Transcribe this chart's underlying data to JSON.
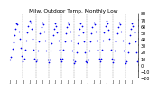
{
  "title": "Milw. Outdoor Temp. Monthly Low",
  "bg_color": "#ffffff",
  "dot_color": "#0000ee",
  "dot_size": 1.5,
  "grid_color": "#888888",
  "ylim": [
    -20,
    80
  ],
  "yticks": [
    -20,
    -10,
    0,
    10,
    20,
    30,
    40,
    50,
    60,
    70,
    80
  ],
  "ylabel_fontsize": 3.5,
  "xlabel_fontsize": 3.0,
  "title_fontsize": 4.2,
  "x_data": [
    0,
    1,
    2,
    3,
    4,
    5,
    6,
    7,
    8,
    9,
    10,
    11,
    12,
    13,
    14,
    15,
    16,
    17,
    18,
    19,
    20,
    21,
    22,
    23,
    24,
    25,
    26,
    27,
    28,
    29,
    30,
    31,
    32,
    33,
    34,
    35,
    36,
    37,
    38,
    39,
    40,
    41,
    42,
    43,
    44,
    45,
    46,
    47,
    48,
    49,
    50,
    51,
    52,
    53,
    54,
    55,
    56,
    57,
    58,
    59,
    60,
    61,
    62,
    63,
    64,
    65,
    66,
    67,
    68,
    69,
    70,
    71,
    72,
    73,
    74,
    75,
    76,
    77,
    78,
    79,
    80,
    81,
    82,
    83,
    84,
    85,
    86,
    87,
    88,
    89,
    90,
    91,
    92,
    93,
    94,
    95,
    96,
    97,
    98,
    99,
    100,
    101,
    102,
    103,
    104,
    105,
    106,
    107,
    108,
    109,
    110,
    111,
    112,
    113,
    114,
    115,
    116,
    117,
    118,
    119
  ],
  "y_data": [
    8,
    12,
    25,
    35,
    46,
    56,
    64,
    62,
    52,
    40,
    26,
    14,
    5,
    10,
    24,
    38,
    50,
    60,
    68,
    65,
    55,
    40,
    24,
    10,
    6,
    8,
    22,
    36,
    48,
    58,
    66,
    62,
    52,
    38,
    22,
    8,
    4,
    8,
    22,
    34,
    46,
    56,
    64,
    60,
    50,
    38,
    24,
    10,
    6,
    10,
    24,
    36,
    48,
    58,
    65,
    62,
    52,
    38,
    22,
    8,
    2,
    6,
    20,
    34,
    46,
    56,
    64,
    60,
    50,
    36,
    20,
    6,
    4,
    8,
    22,
    36,
    48,
    58,
    66,
    62,
    52,
    38,
    24,
    10,
    6,
    10,
    24,
    38,
    50,
    60,
    68,
    64,
    54,
    40,
    24,
    10,
    4,
    8,
    22,
    36,
    48,
    58,
    66,
    62,
    52,
    38,
    22,
    8,
    2,
    6,
    20,
    34,
    46,
    56,
    64,
    60,
    50,
    36,
    20,
    6
  ],
  "vline_positions": [
    12,
    24,
    36,
    48,
    60,
    72,
    84,
    96,
    108
  ],
  "num_points": 120,
  "xtick_step": 6
}
